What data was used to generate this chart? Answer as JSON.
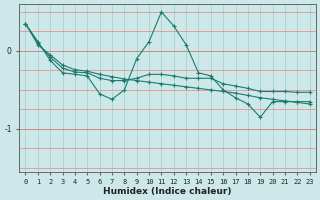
{
  "xlabel": "Humidex (Indice chaleur)",
  "background_color": "#cce8e8",
  "grid_color": "#b0d8d8",
  "line_color": "#1e7a70",
  "xlim": [
    -0.5,
    23.5
  ],
  "ylim": [
    -1.55,
    0.6
  ],
  "xticks": [
    0,
    1,
    2,
    3,
    4,
    5,
    6,
    7,
    8,
    9,
    10,
    11,
    12,
    13,
    14,
    15,
    16,
    17,
    18,
    19,
    20,
    21,
    22,
    23
  ],
  "yticks": [
    0,
    -1
  ],
  "line1_x": [
    0,
    1,
    2,
    3,
    4,
    5,
    6,
    7,
    8,
    9,
    10,
    11,
    12,
    13,
    14,
    15,
    16,
    17,
    18,
    19,
    20,
    21,
    22,
    23
  ],
  "line1_y": [
    0.35,
    0.12,
    -0.12,
    -0.28,
    -0.3,
    -0.32,
    -0.55,
    -0.62,
    -0.5,
    -0.1,
    0.12,
    0.5,
    0.32,
    0.08,
    -0.28,
    -0.32,
    -0.5,
    -0.6,
    -0.68,
    -0.85,
    -0.65,
    -0.65,
    -0.65,
    -0.65
  ],
  "line2_x": [
    0,
    1,
    2,
    3,
    4,
    5,
    6,
    7,
    8,
    9,
    10,
    11,
    12,
    13,
    14,
    15,
    16,
    17,
    18,
    19,
    20,
    21,
    22,
    23
  ],
  "line2_y": [
    0.35,
    0.1,
    -0.08,
    -0.22,
    -0.27,
    -0.28,
    -0.35,
    -0.38,
    -0.38,
    -0.35,
    -0.3,
    -0.3,
    -0.32,
    -0.35,
    -0.35,
    -0.35,
    -0.42,
    -0.45,
    -0.48,
    -0.52,
    -0.52,
    -0.52,
    -0.53,
    -0.53
  ],
  "line3_x": [
    0,
    1,
    2,
    3,
    4,
    5,
    6,
    7,
    8,
    9,
    10,
    11,
    12,
    13,
    14,
    15,
    16,
    17,
    18,
    19,
    20,
    21,
    22,
    23
  ],
  "line3_y": [
    0.35,
    0.08,
    -0.05,
    -0.18,
    -0.24,
    -0.26,
    -0.3,
    -0.33,
    -0.36,
    -0.38,
    -0.4,
    -0.42,
    -0.44,
    -0.46,
    -0.48,
    -0.5,
    -0.52,
    -0.54,
    -0.57,
    -0.6,
    -0.62,
    -0.64,
    -0.66,
    -0.68
  ]
}
